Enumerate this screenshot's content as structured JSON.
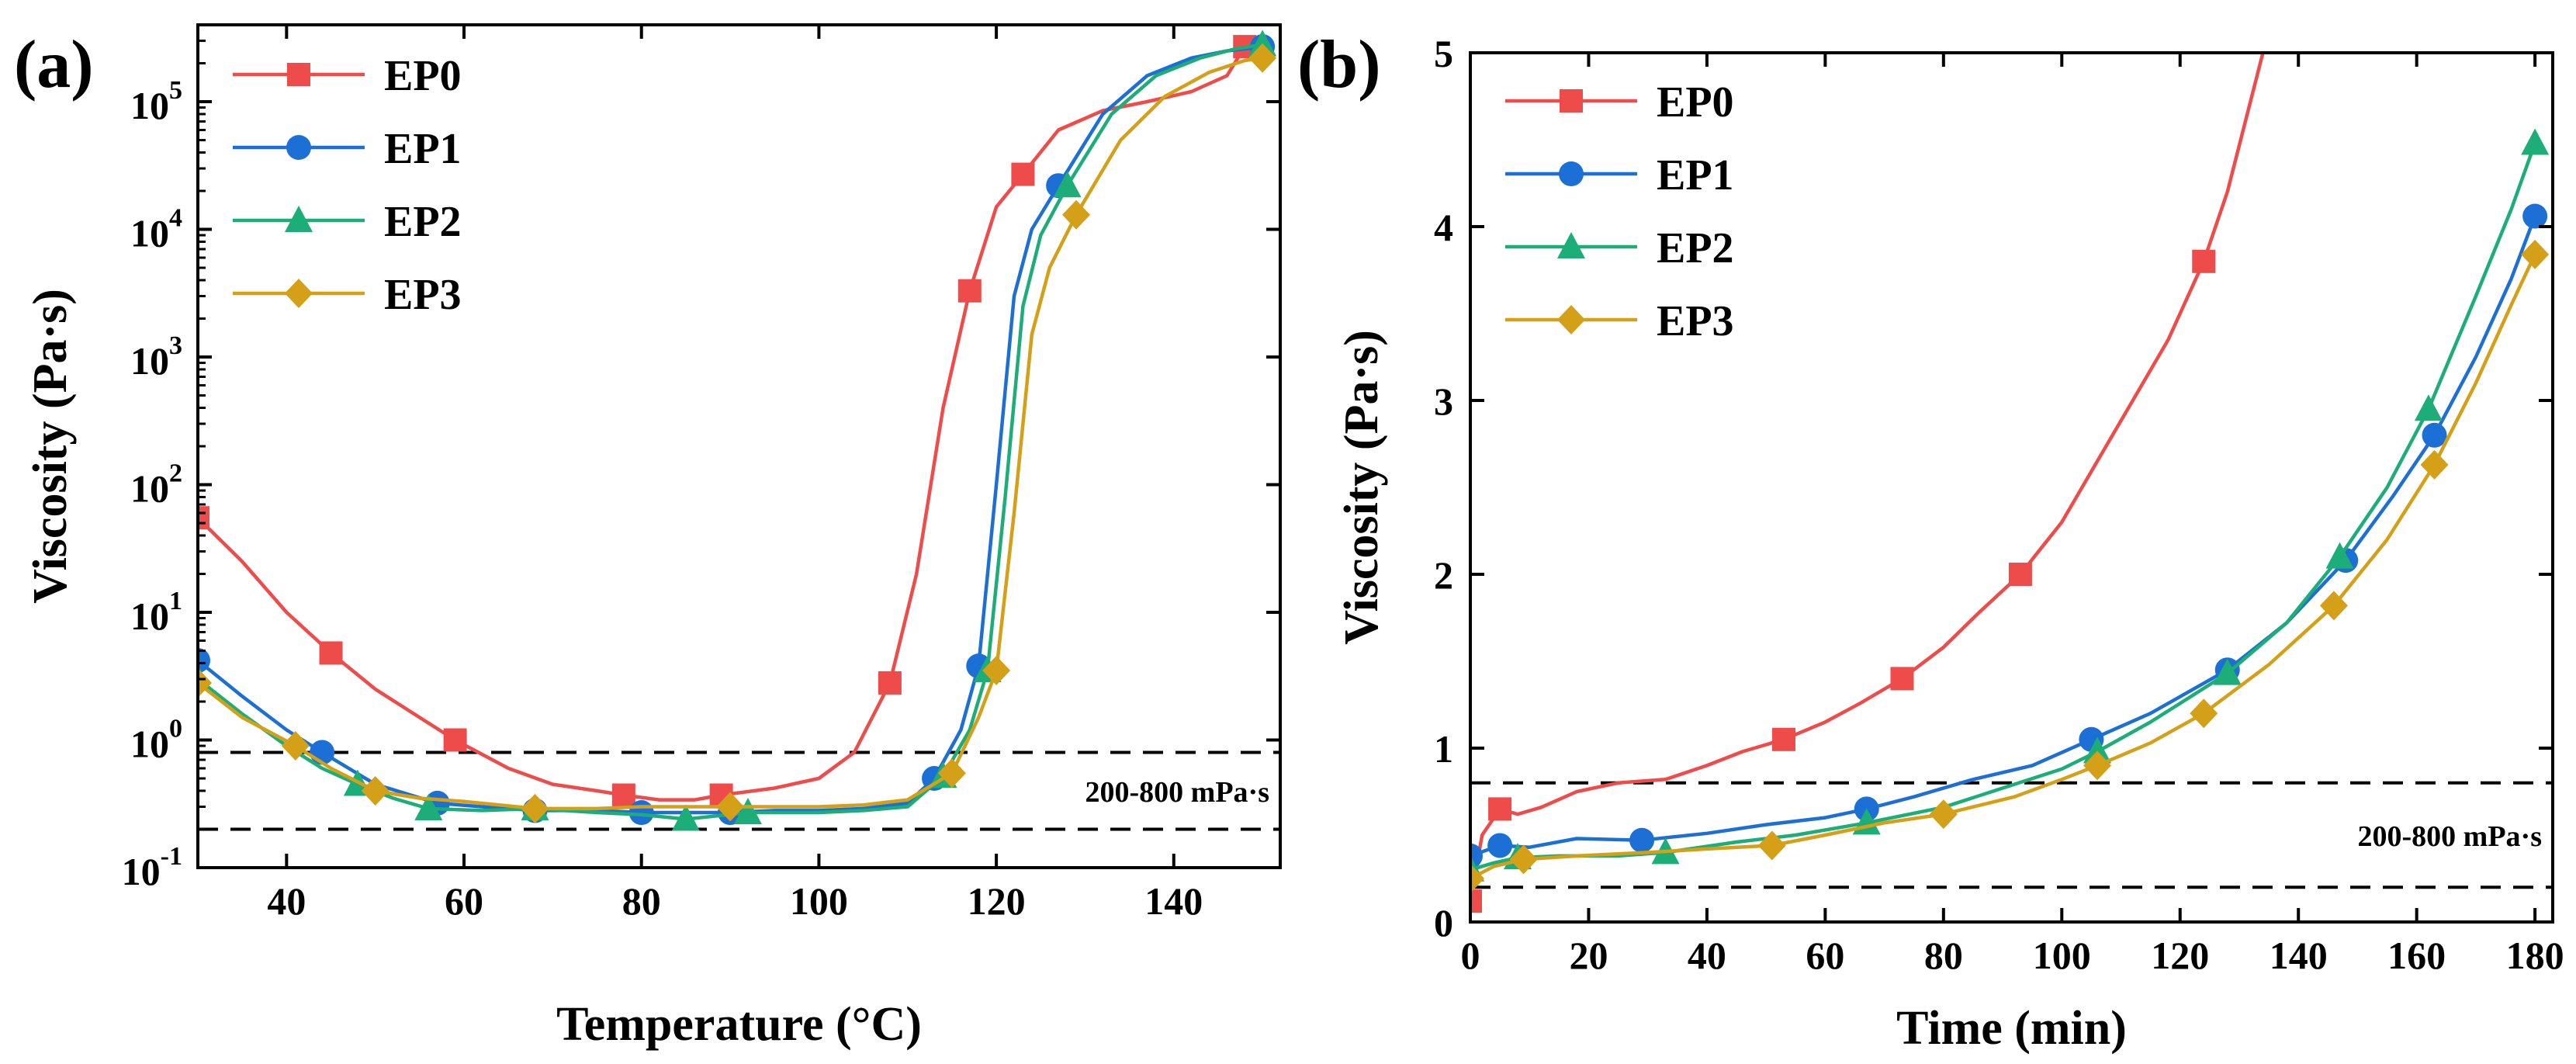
{
  "colors": {
    "EP0": "#ee4b4b",
    "EP1": "#1c6fd4",
    "EP2": "#1cad78",
    "EP3": "#d4a018"
  },
  "chart_data": [
    {
      "panel_label": "(a)",
      "type": "line",
      "yscale": "log",
      "xlabel": "Temperature (°C)",
      "ylabel": "Viscosity (Pa·s)",
      "xlim": [
        30,
        152
      ],
      "ylim": [
        0.1,
        400000
      ],
      "xticks": [
        40,
        60,
        80,
        100,
        120,
        140
      ],
      "xtick_labels": [
        "40",
        "60",
        "80",
        "100",
        "120",
        "140"
      ],
      "yticks": [
        {
          "value": 0.1,
          "base": "10",
          "exp": "-1"
        },
        {
          "value": 1,
          "base": "10",
          "exp": "0"
        },
        {
          "value": 10,
          "base": "10",
          "exp": "1"
        },
        {
          "value": 100,
          "base": "10",
          "exp": "2"
        },
        {
          "value": 1000,
          "base": "10",
          "exp": "3"
        },
        {
          "value": 10000,
          "base": "10",
          "exp": "4"
        },
        {
          "value": 100000,
          "base": "10",
          "exp": "5"
        }
      ],
      "reference_lines": [
        0.8,
        0.2
      ],
      "band_label": "200-800 mPa·s",
      "legend_position": "top-left",
      "series": [
        {
          "name": "EP0",
          "marker": "square",
          "x": [
            30,
            45,
            59,
            78,
            89,
            108,
            117,
            123,
            148
          ],
          "y": [
            55,
            4.8,
            1.0,
            0.37,
            0.37,
            2.8,
            3300,
            27000,
            270000
          ],
          "line_x": [
            30,
            35,
            40,
            45,
            50,
            55,
            59,
            65,
            70,
            75,
            78,
            82,
            86,
            89,
            95,
            100,
            104,
            108,
            111,
            114,
            117,
            120,
            123,
            127,
            132,
            137,
            142,
            146,
            148,
            150
          ],
          "line_y": [
            55,
            25,
            10,
            4.8,
            2.5,
            1.5,
            1.0,
            0.6,
            0.45,
            0.4,
            0.37,
            0.34,
            0.34,
            0.37,
            0.42,
            0.5,
            0.8,
            2.8,
            20,
            400,
            3300,
            15000,
            27000,
            60000,
            85000,
            100000,
            120000,
            160000,
            270000,
            290000
          ]
        },
        {
          "name": "EP1",
          "marker": "circle",
          "x": [
            30,
            44,
            57,
            68,
            80,
            90,
            113,
            118,
            127,
            150
          ],
          "y": [
            4.2,
            0.8,
            0.32,
            0.28,
            0.27,
            0.27,
            0.5,
            3.8,
            22000,
            270000
          ],
          "line_x": [
            30,
            35,
            40,
            44,
            50,
            57,
            62,
            68,
            75,
            80,
            85,
            90,
            95,
            100,
            105,
            110,
            113,
            116,
            118,
            120,
            122,
            124,
            127,
            132,
            137,
            142,
            146,
            150
          ],
          "line_y": [
            4.2,
            2.2,
            1.2,
            0.8,
            0.45,
            0.32,
            0.3,
            0.28,
            0.28,
            0.27,
            0.27,
            0.27,
            0.28,
            0.28,
            0.29,
            0.32,
            0.5,
            1.2,
            3.8,
            100,
            3000,
            10000,
            22000,
            80000,
            160000,
            220000,
            250000,
            270000
          ]
        },
        {
          "name": "EP2",
          "marker": "triangle",
          "x": [
            30,
            48,
            56,
            68,
            85,
            92,
            114,
            119,
            128,
            150
          ],
          "y": [
            3.0,
            0.45,
            0.29,
            0.29,
            0.24,
            0.27,
            0.52,
            3.5,
            22000,
            280000
          ],
          "line_x": [
            30,
            35,
            40,
            44,
            48,
            52,
            56,
            62,
            68,
            75,
            80,
            85,
            92,
            100,
            105,
            110,
            114,
            117,
            119,
            121,
            123,
            125,
            128,
            133,
            138,
            143,
            147,
            150
          ],
          "line_y": [
            3.0,
            1.6,
            0.9,
            0.6,
            0.45,
            0.35,
            0.29,
            0.28,
            0.29,
            0.27,
            0.26,
            0.24,
            0.27,
            0.27,
            0.28,
            0.3,
            0.52,
            1.2,
            3.5,
            80,
            2500,
            9000,
            22000,
            80000,
            160000,
            220000,
            260000,
            280000
          ]
        },
        {
          "name": "EP3",
          "marker": "diamond",
          "x": [
            30,
            41,
            50,
            68,
            90,
            115,
            120,
            129,
            150
          ],
          "y": [
            2.8,
            0.9,
            0.4,
            0.29,
            0.3,
            0.55,
            3.5,
            13000,
            220000
          ],
          "line_x": [
            30,
            35,
            41,
            45,
            50,
            55,
            60,
            68,
            75,
            80,
            85,
            90,
            95,
            100,
            105,
            110,
            115,
            118,
            120,
            122,
            124,
            126,
            129,
            134,
            139,
            144,
            148,
            150
          ],
          "line_y": [
            2.8,
            1.5,
            0.9,
            0.6,
            0.4,
            0.35,
            0.33,
            0.29,
            0.29,
            0.3,
            0.3,
            0.3,
            0.3,
            0.3,
            0.31,
            0.34,
            0.55,
            1.5,
            3.5,
            60,
            1500,
            5000,
            13000,
            50000,
            110000,
            170000,
            210000,
            220000
          ]
        }
      ]
    },
    {
      "panel_label": "(b)",
      "type": "line",
      "yscale": "linear",
      "xlabel": "Time (min)",
      "ylabel": "Viscosity (Pa·s)",
      "xlim": [
        0,
        183
      ],
      "ylim": [
        0,
        5
      ],
      "xticks": [
        0,
        20,
        40,
        60,
        80,
        100,
        120,
        140,
        160,
        180
      ],
      "xtick_labels": [
        "0",
        "20",
        "40",
        "60",
        "80",
        "100",
        "120",
        "140",
        "160",
        "180"
      ],
      "yticks": [
        0,
        1,
        2,
        3,
        4,
        5
      ],
      "ytick_labels": [
        "0",
        "1",
        "2",
        "3",
        "4",
        "5"
      ],
      "reference_lines": [
        0.8,
        0.2
      ],
      "band_label": "200-800 mPa·s",
      "legend_position": "top-left",
      "series": [
        {
          "name": "EP0",
          "marker": "square",
          "x": [
            0,
            5,
            53,
            73,
            93,
            124
          ],
          "y": [
            0.12,
            0.65,
            1.05,
            1.4,
            2.0,
            3.8
          ],
          "line_x": [
            0,
            2,
            5,
            8,
            12,
            18,
            25,
            33,
            40,
            46,
            53,
            60,
            66,
            73,
            80,
            86,
            93,
            100,
            106,
            112,
            118,
            124,
            128,
            131,
            134
          ],
          "line_y": [
            0.12,
            0.5,
            0.65,
            0.62,
            0.66,
            0.75,
            0.8,
            0.82,
            0.9,
            0.98,
            1.05,
            1.15,
            1.26,
            1.4,
            1.58,
            1.78,
            2.0,
            2.3,
            2.65,
            3.0,
            3.35,
            3.8,
            4.2,
            4.6,
            5.0
          ]
        },
        {
          "name": "EP1",
          "marker": "circle",
          "x": [
            0,
            5,
            29,
            67,
            105,
            128,
            148,
            163,
            180
          ],
          "y": [
            0.38,
            0.44,
            0.47,
            0.65,
            1.05,
            1.45,
            2.08,
            2.8,
            4.06
          ],
          "line_x": [
            0,
            5,
            10,
            18,
            29,
            40,
            50,
            60,
            67,
            75,
            85,
            95,
            105,
            115,
            128,
            138,
            148,
            156,
            163,
            170,
            176,
            180
          ],
          "line_y": [
            0.38,
            0.44,
            0.43,
            0.48,
            0.47,
            0.51,
            0.56,
            0.6,
            0.65,
            0.72,
            0.82,
            0.9,
            1.05,
            1.2,
            1.45,
            1.72,
            2.08,
            2.45,
            2.8,
            3.25,
            3.7,
            4.06
          ]
        },
        {
          "name": "EP2",
          "marker": "triangle",
          "x": [
            0,
            8,
            33,
            67,
            106,
            128,
            147,
            162,
            180
          ],
          "y": [
            0.3,
            0.37,
            0.4,
            0.57,
            0.98,
            1.43,
            2.1,
            2.95,
            4.48
          ],
          "line_x": [
            0,
            4,
            8,
            15,
            25,
            33,
            45,
            55,
            67,
            80,
            90,
            100,
            106,
            115,
            128,
            138,
            147,
            155,
            162,
            170,
            176,
            180
          ],
          "line_y": [
            0.3,
            0.34,
            0.37,
            0.38,
            0.38,
            0.4,
            0.46,
            0.5,
            0.57,
            0.66,
            0.77,
            0.88,
            0.98,
            1.15,
            1.43,
            1.72,
            2.1,
            2.5,
            2.95,
            3.6,
            4.1,
            4.48
          ]
        },
        {
          "name": "EP3",
          "marker": "diamond",
          "x": [
            0,
            9,
            51,
            80,
            106,
            124,
            146,
            163,
            180
          ],
          "y": [
            0.25,
            0.36,
            0.44,
            0.62,
            0.9,
            1.2,
            1.82,
            2.63,
            3.84
          ],
          "line_x": [
            0,
            4,
            9,
            18,
            30,
            40,
            51,
            60,
            70,
            80,
            92,
            100,
            106,
            115,
            124,
            135,
            146,
            155,
            163,
            170,
            176,
            180
          ],
          "line_y": [
            0.25,
            0.32,
            0.36,
            0.38,
            0.4,
            0.42,
            0.44,
            0.5,
            0.57,
            0.62,
            0.72,
            0.82,
            0.9,
            1.03,
            1.2,
            1.48,
            1.82,
            2.2,
            2.63,
            3.1,
            3.55,
            3.84
          ]
        }
      ]
    }
  ]
}
